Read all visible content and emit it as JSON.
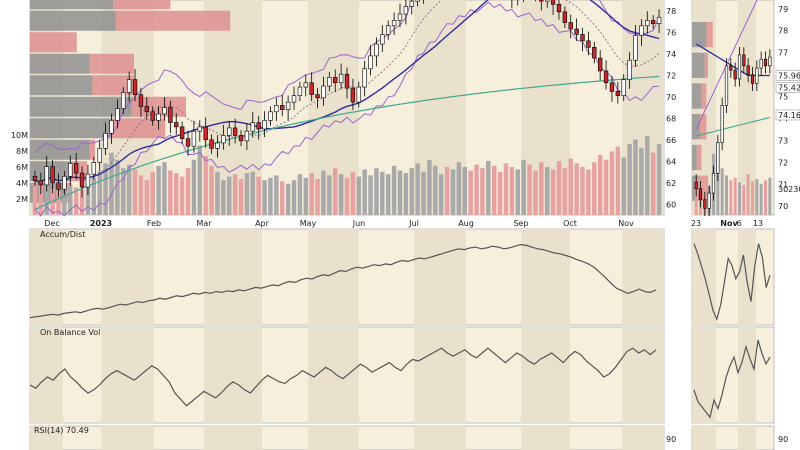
{
  "chart_data": {
    "type": "candlestick",
    "colors": {
      "panel_bg": "#f6efdc",
      "band": "#eae1cc",
      "up_candle": "#ffffff",
      "down_candle": "#c8282d",
      "candle_outline": "#000000",
      "volume_up": "#a9a9a9",
      "volume_down": "#e6a1a1",
      "volprofile_gray": "#8f8f8f",
      "volprofile_red": "#de8f8f",
      "bollinger": "#9a63d0",
      "sma50": "#2f2c9e",
      "sma200": "#3fa88f",
      "sma20": "#8a6a8a",
      "indicator_line": "#555555"
    },
    "main": {
      "x_labels": [
        {
          "label": "Dec",
          "bold": false
        },
        {
          "label": "2023",
          "bold": true
        },
        {
          "label": "Feb",
          "bold": false
        },
        {
          "label": "Mar",
          "bold": false
        },
        {
          "label": "Apr",
          "bold": false
        },
        {
          "label": "May",
          "bold": false
        },
        {
          "label": "Jun",
          "bold": false
        },
        {
          "label": "Jul",
          "bold": false
        },
        {
          "label": "Aug",
          "bold": false
        },
        {
          "label": "Sep",
          "bold": false
        },
        {
          "label": "Oct",
          "bold": false
        },
        {
          "label": "Nov",
          "bold": false
        }
      ],
      "price_ticks": [
        60,
        62,
        64,
        66,
        68,
        70,
        72,
        74,
        76,
        78
      ],
      "volume_ticks": [
        "2M",
        "4M",
        "6M",
        "8M",
        "10M"
      ],
      "close_series": [
        62.2,
        61.8,
        63.5,
        62.0,
        61.4,
        62.6,
        63.8,
        62.9,
        61.6,
        62.8,
        63.9,
        65.2,
        66.6,
        67.8,
        68.9,
        70.4,
        71.6,
        70.2,
        69.1,
        68.6,
        67.8,
        68.4,
        69.0,
        67.6,
        67.2,
        66.1,
        65.4,
        66.8,
        67.2,
        66.0,
        65.2,
        65.7,
        66.4,
        67.1,
        66.4,
        65.9,
        66.8,
        67.6,
        67.0,
        67.8,
        68.6,
        69.2,
        68.8,
        69.5,
        70.1,
        70.9,
        71.3,
        70.2,
        69.9,
        71.0,
        71.8,
        71.3,
        72.1,
        70.8,
        69.5,
        70.9,
        72.6,
        73.8,
        74.9,
        75.8,
        76.6,
        77.1,
        77.7,
        78.4,
        78.9,
        79.5,
        79.8,
        80.1,
        80.6,
        81.1,
        80.8,
        81.4,
        81.9,
        82.3,
        82.1,
        81.6,
        80.9,
        81.2,
        80.6,
        80.3,
        79.6,
        79.1,
        79.8,
        80.5,
        80.1,
        79.4,
        78.9,
        79.2,
        78.6,
        77.9,
        76.9,
        76.3,
        75.8,
        75.2,
        74.6,
        73.6,
        72.4,
        71.3,
        70.5,
        70.1,
        71.6,
        73.4,
        75.7,
        76.6,
        77.1,
        76.8,
        77.4
      ],
      "volume_series": [
        2.6,
        2.9,
        3.4,
        2.2,
        2.0,
        1.8,
        2.5,
        2.3,
        2.1,
        2.7,
        3.1,
        3.6,
        4.3,
        5.2,
        4.6,
        3.9,
        4.2,
        3.8,
        3.3,
        2.9,
        3.6,
        4.1,
        4.4,
        3.7,
        3.5,
        3.2,
        3.9,
        4.6,
        5.8,
        4.9,
        4.1,
        3.6,
        2.9,
        3.2,
        3.4,
        3.0,
        3.5,
        3.6,
        3.2,
        2.9,
        3.1,
        3.3,
        2.8,
        2.6,
        2.9,
        3.4,
        3.1,
        3.5,
        3.0,
        3.7,
        3.3,
        3.9,
        3.4,
        3.1,
        3.6,
        3.2,
        3.8,
        3.3,
        3.9,
        3.6,
        3.4,
        4.1,
        3.7,
        3.5,
        3.9,
        4.3,
        3.6,
        4.6,
        4.1,
        3.4,
        4.0,
        3.8,
        4.4,
        4.0,
        3.7,
        4.2,
        3.9,
        4.5,
        4.1,
        3.6,
        4.3,
        4.0,
        3.8,
        4.6,
        4.2,
        3.7,
        4.4,
        4.0,
        3.8,
        4.5,
        3.9,
        4.7,
        4.3,
        4.0,
        3.8,
        4.4,
        5.0,
        4.6,
        5.3,
        5.7,
        4.8,
        5.9,
        6.3,
        5.6,
        6.6,
        5.2,
        5.9
      ],
      "volume_by_price": [
        {
          "price": 79,
          "up": 3.2,
          "down": 2.2
        },
        {
          "price": 77,
          "up": 3.3,
          "down": 4.4
        },
        {
          "price": 75,
          "up": 0.0,
          "down": 1.8
        },
        {
          "price": 73,
          "up": 2.3,
          "down": 1.7
        },
        {
          "price": 71,
          "up": 2.4,
          "down": 1.6
        },
        {
          "price": 69,
          "up": 3.9,
          "down": 2.1
        },
        {
          "price": 67,
          "up": 3.1,
          "down": 2.1
        },
        {
          "price": 65,
          "up": 2.3,
          "down": 0.2
        },
        {
          "price": 63,
          "up": 1.6,
          "down": 0.6
        },
        {
          "price": 61,
          "up": 1.4,
          "down": 0.2
        }
      ]
    },
    "side": {
      "x_labels": [
        {
          "label": "23",
          "bold": false
        },
        {
          "label": "Nov",
          "bold": true
        },
        {
          "label": "6",
          "bold": false
        },
        {
          "label": "13",
          "bold": false
        }
      ],
      "price_ticks": [
        70,
        71,
        72,
        73,
        74,
        75,
        76,
        77,
        78,
        79
      ],
      "level_labels": [
        {
          "value": 75.96,
          "label": "75.96"
        },
        {
          "value": 75.42,
          "label": "75.42"
        },
        {
          "value": 74.16,
          "label": "74.16"
        }
      ],
      "volume_label": "30230",
      "close_series": [
        70.8,
        70.3,
        69.9,
        70.6,
        71.5,
        72.9,
        74.6,
        76.4,
        76.2,
        75.8,
        76.9,
        76.4,
        76.0,
        75.6,
        76.3,
        76.7,
        76.4,
        76.8
      ],
      "volume_series": [
        3.0,
        2.6,
        3.2,
        2.4,
        5.1,
        4.8,
        3.9,
        3.3,
        2.9,
        3.1,
        2.7,
        2.5,
        3.4,
        2.8,
        3.0,
        2.6,
        2.9,
        3.1
      ],
      "ad_series": [
        88,
        76,
        62,
        47,
        30,
        12,
        2,
        18,
        44,
        71,
        63,
        48,
        56,
        75,
        44,
        22,
        63,
        88,
        72,
        38,
        52
      ],
      "obv_series": [
        34,
        20,
        14,
        8,
        2,
        22,
        12,
        28,
        48,
        62,
        72,
        54,
        66,
        84,
        70,
        58,
        92,
        76,
        64,
        72
      ]
    },
    "accum_dist": {
      "label": "Accum/Dist",
      "series": [
        4,
        5,
        6,
        7,
        8,
        7,
        9,
        10,
        11,
        10,
        12,
        14,
        15,
        14,
        16,
        18,
        20,
        19,
        21,
        23,
        22,
        24,
        25,
        27,
        26,
        28,
        30,
        29,
        31,
        33,
        32,
        34,
        33,
        35,
        34,
        36,
        35,
        37,
        36,
        38,
        40,
        39,
        41,
        43,
        42,
        45,
        47,
        46,
        49,
        51,
        50,
        53,
        55,
        54,
        57,
        60,
        59,
        62,
        64,
        63,
        65,
        67,
        66,
        68,
        67,
        70,
        72,
        71,
        73,
        75,
        74,
        76,
        78,
        80,
        82,
        84,
        86,
        85,
        87,
        88,
        86,
        87,
        89,
        88,
        86,
        87,
        89,
        91,
        90,
        88,
        86,
        85,
        83,
        81,
        80,
        78,
        76,
        73,
        71,
        68,
        64,
        58,
        52,
        45,
        39,
        36,
        33,
        35,
        38,
        35,
        34,
        37
      ],
      "y_min": 0,
      "y_max": 100
    },
    "obv": {
      "label": "On Balance Vol",
      "series": [
        40,
        36,
        44,
        50,
        46,
        54,
        60,
        50,
        44,
        36,
        30,
        34,
        40,
        48,
        54,
        58,
        54,
        50,
        46,
        52,
        58,
        64,
        60,
        52,
        44,
        30,
        22,
        14,
        20,
        26,
        32,
        28,
        24,
        30,
        38,
        44,
        40,
        34,
        30,
        38,
        46,
        52,
        48,
        44,
        42,
        48,
        52,
        58,
        54,
        50,
        56,
        62,
        58,
        52,
        48,
        54,
        60,
        66,
        62,
        56,
        60,
        64,
        68,
        62,
        58,
        66,
        72,
        70,
        74,
        78,
        82,
        86,
        80,
        76,
        80,
        84,
        78,
        74,
        80,
        86,
        80,
        74,
        68,
        74,
        80,
        76,
        70,
        66,
        72,
        76,
        80,
        74,
        68,
        76,
        82,
        78,
        70,
        64,
        58,
        50,
        54,
        62,
        72,
        82,
        86,
        80,
        84,
        78,
        84
      ],
      "y_min": 0,
      "y_max": 100
    },
    "rsi": {
      "label": "RSI(14) 70.49",
      "ticks": [
        90
      ]
    }
  }
}
